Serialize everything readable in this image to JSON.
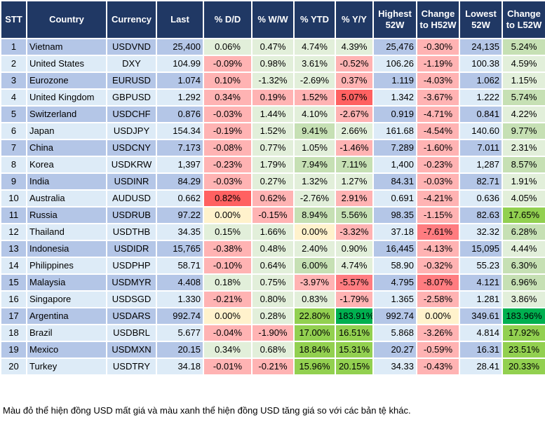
{
  "headers": [
    "STT",
    "Country",
    "Currency",
    "Last",
    "% D/D",
    "% W/W",
    "% YTD",
    "% Y/Y",
    "Highest 52W",
    "Change to H52W",
    "Lowest 52W",
    "Change to L52W"
  ],
  "colors": {
    "header": "#203864",
    "row_dark": "#b4c6e7",
    "row_light": "#ddebf7",
    "g": "#e2efda",
    "r": "#ffb3b3",
    "y": "#fff2cc",
    "m": "#c6e0b4",
    "G": "#92d050",
    "D": "#00b050",
    "R": "#ff7c80",
    "X": "#ff6161"
  },
  "rows": [
    {
      "stt": "1",
      "country": "Vietnam",
      "currency": "USDVND",
      "last": "25,400",
      "dd": [
        "0.06%",
        "g"
      ],
      "ww": [
        "0.47%",
        "g"
      ],
      "ytd": [
        "4.74%",
        "g"
      ],
      "yy": [
        "4.39%",
        "g"
      ],
      "high": "25,476",
      "ch_h": [
        "-0.30%",
        "r"
      ],
      "low": "24,135",
      "ch_l": [
        "5.24%",
        "m"
      ]
    },
    {
      "stt": "2",
      "country": "United States",
      "currency": "DXY",
      "last": "104.99",
      "dd": [
        "-0.09%",
        "r"
      ],
      "ww": [
        "0.98%",
        "g"
      ],
      "ytd": [
        "3.61%",
        "g"
      ],
      "yy": [
        "-0.52%",
        "r"
      ],
      "high": "106.26",
      "ch_h": [
        "-1.19%",
        "r"
      ],
      "low": "100.38",
      "ch_l": [
        "4.59%",
        "g"
      ]
    },
    {
      "stt": "3",
      "country": "Eurozone",
      "currency": "EURUSD",
      "last": "1.074",
      "dd": [
        "0.10%",
        "r"
      ],
      "ww": [
        "-1.32%",
        "g"
      ],
      "ytd": [
        "-2.69%",
        "g"
      ],
      "yy": [
        "0.37%",
        "r"
      ],
      "high": "1.119",
      "ch_h": [
        "-4.03%",
        "r"
      ],
      "low": "1.062",
      "ch_l": [
        "1.15%",
        "g"
      ]
    },
    {
      "stt": "4",
      "country": "United Kingdom",
      "currency": "GBPUSD",
      "last": "1.292",
      "dd": [
        "0.34%",
        "r"
      ],
      "ww": [
        "0.19%",
        "r"
      ],
      "ytd": [
        "1.52%",
        "r"
      ],
      "yy": [
        "5.07%",
        "X"
      ],
      "high": "1.342",
      "ch_h": [
        "-3.67%",
        "r"
      ],
      "low": "1.222",
      "ch_l": [
        "5.74%",
        "m"
      ]
    },
    {
      "stt": "5",
      "country": "Switzerland",
      "currency": "USDCHF",
      "last": "0.876",
      "dd": [
        "-0.03%",
        "r"
      ],
      "ww": [
        "1.44%",
        "g"
      ],
      "ytd": [
        "4.10%",
        "g"
      ],
      "yy": [
        "-2.67%",
        "r"
      ],
      "high": "0.919",
      "ch_h": [
        "-4.71%",
        "r"
      ],
      "low": "0.841",
      "ch_l": [
        "4.22%",
        "g"
      ]
    },
    {
      "stt": "6",
      "country": "Japan",
      "currency": "USDJPY",
      "last": "154.34",
      "dd": [
        "-0.19%",
        "r"
      ],
      "ww": [
        "1.52%",
        "g"
      ],
      "ytd": [
        "9.41%",
        "m"
      ],
      "yy": [
        "2.66%",
        "g"
      ],
      "high": "161.68",
      "ch_h": [
        "-4.54%",
        "r"
      ],
      "low": "140.60",
      "ch_l": [
        "9.77%",
        "m"
      ]
    },
    {
      "stt": "7",
      "country": "China",
      "currency": "USDCNY",
      "last": "7.173",
      "dd": [
        "-0.08%",
        "r"
      ],
      "ww": [
        "0.77%",
        "g"
      ],
      "ytd": [
        "1.05%",
        "g"
      ],
      "yy": [
        "-1.46%",
        "r"
      ],
      "high": "7.289",
      "ch_h": [
        "-1.60%",
        "r"
      ],
      "low": "7.011",
      "ch_l": [
        "2.31%",
        "g"
      ]
    },
    {
      "stt": "8",
      "country": "Korea",
      "currency": "USDKRW",
      "last": "1,397",
      "dd": [
        "-0.23%",
        "r"
      ],
      "ww": [
        "1.79%",
        "g"
      ],
      "ytd": [
        "7.94%",
        "m"
      ],
      "yy": [
        "7.11%",
        "m"
      ],
      "high": "1,400",
      "ch_h": [
        "-0.23%",
        "r"
      ],
      "low": "1,287",
      "ch_l": [
        "8.57%",
        "m"
      ]
    },
    {
      "stt": "9",
      "country": "India",
      "currency": "USDINR",
      "last": "84.29",
      "dd": [
        "-0.03%",
        "r"
      ],
      "ww": [
        "0.27%",
        "g"
      ],
      "ytd": [
        "1.32%",
        "g"
      ],
      "yy": [
        "1.27%",
        "g"
      ],
      "high": "84.31",
      "ch_h": [
        "-0.03%",
        "r"
      ],
      "low": "82.71",
      "ch_l": [
        "1.91%",
        "g"
      ]
    },
    {
      "stt": "10",
      "country": "Australia",
      "currency": "AUDUSD",
      "last": "0.662",
      "dd": [
        "0.82%",
        "X"
      ],
      "ww": [
        "0.62%",
        "r"
      ],
      "ytd": [
        "-2.76%",
        "g"
      ],
      "yy": [
        "2.91%",
        "r"
      ],
      "high": "0.691",
      "ch_h": [
        "-4.21%",
        "r"
      ],
      "low": "0.636",
      "ch_l": [
        "4.05%",
        "g"
      ]
    },
    {
      "stt": "11",
      "country": "Russia",
      "currency": "USDRUB",
      "last": "97.22",
      "dd": [
        "0.00%",
        "y"
      ],
      "ww": [
        "-0.15%",
        "r"
      ],
      "ytd": [
        "8.94%",
        "m"
      ],
      "yy": [
        "5.56%",
        "m"
      ],
      "high": "98.35",
      "ch_h": [
        "-1.15%",
        "r"
      ],
      "low": "82.63",
      "ch_l": [
        "17.65%",
        "G"
      ]
    },
    {
      "stt": "12",
      "country": "Thailand",
      "currency": "USDTHB",
      "last": "34.35",
      "dd": [
        "0.15%",
        "g"
      ],
      "ww": [
        "1.66%",
        "g"
      ],
      "ytd": [
        "0.00%",
        "y"
      ],
      "yy": [
        "-3.32%",
        "r"
      ],
      "high": "37.18",
      "ch_h": [
        "-7.61%",
        "R"
      ],
      "low": "32.32",
      "ch_l": [
        "6.28%",
        "m"
      ]
    },
    {
      "stt": "13",
      "country": "Indonesia",
      "currency": "USDIDR",
      "last": "15,765",
      "dd": [
        "-0.38%",
        "r"
      ],
      "ww": [
        "0.48%",
        "g"
      ],
      "ytd": [
        "2.40%",
        "g"
      ],
      "yy": [
        "0.90%",
        "g"
      ],
      "high": "16,445",
      "ch_h": [
        "-4.13%",
        "r"
      ],
      "low": "15,095",
      "ch_l": [
        "4.44%",
        "g"
      ]
    },
    {
      "stt": "14",
      "country": "Philippines",
      "currency": "USDPHP",
      "last": "58.71",
      "dd": [
        "-0.10%",
        "r"
      ],
      "ww": [
        "0.64%",
        "g"
      ],
      "ytd": [
        "6.00%",
        "m"
      ],
      "yy": [
        "4.74%",
        "g"
      ],
      "high": "58.90",
      "ch_h": [
        "-0.32%",
        "r"
      ],
      "low": "55.23",
      "ch_l": [
        "6.30%",
        "m"
      ]
    },
    {
      "stt": "15",
      "country": "Malaysia",
      "currency": "USDMYR",
      "last": "4.408",
      "dd": [
        "0.18%",
        "g"
      ],
      "ww": [
        "0.75%",
        "g"
      ],
      "ytd": [
        "-3.97%",
        "r"
      ],
      "yy": [
        "-5.57%",
        "R"
      ],
      "high": "4.795",
      "ch_h": [
        "-8.07%",
        "R"
      ],
      "low": "4.121",
      "ch_l": [
        "6.96%",
        "m"
      ]
    },
    {
      "stt": "16",
      "country": "Singapore",
      "currency": "USDSGD",
      "last": "1.330",
      "dd": [
        "-0.21%",
        "r"
      ],
      "ww": [
        "0.80%",
        "g"
      ],
      "ytd": [
        "0.83%",
        "g"
      ],
      "yy": [
        "-1.79%",
        "r"
      ],
      "high": "1.365",
      "ch_h": [
        "-2.58%",
        "r"
      ],
      "low": "1.281",
      "ch_l": [
        "3.86%",
        "g"
      ]
    },
    {
      "stt": "17",
      "country": "Argentina",
      "currency": "USDARS",
      "last": "992.74",
      "dd": [
        "0.00%",
        "y"
      ],
      "ww": [
        "0.28%",
        "g"
      ],
      "ytd": [
        "22.80%",
        "G"
      ],
      "yy": [
        "183.91%",
        "D"
      ],
      "high": "992.74",
      "ch_h": [
        "0.00%",
        "y"
      ],
      "low": "349.61",
      "ch_l": [
        "183.96%",
        "D"
      ]
    },
    {
      "stt": "18",
      "country": "Brazil",
      "currency": "USDBRL",
      "last": "5.677",
      "dd": [
        "-0.04%",
        "r"
      ],
      "ww": [
        "-1.90%",
        "r"
      ],
      "ytd": [
        "17.00%",
        "G"
      ],
      "yy": [
        "16.51%",
        "G"
      ],
      "high": "5.868",
      "ch_h": [
        "-3.26%",
        "r"
      ],
      "low": "4.814",
      "ch_l": [
        "17.92%",
        "G"
      ]
    },
    {
      "stt": "19",
      "country": "Mexico",
      "currency": "USDMXN",
      "last": "20.15",
      "dd": [
        "0.34%",
        "g"
      ],
      "ww": [
        "0.68%",
        "g"
      ],
      "ytd": [
        "18.84%",
        "G"
      ],
      "yy": [
        "15.31%",
        "G"
      ],
      "high": "20.27",
      "ch_h": [
        "-0.59%",
        "r"
      ],
      "low": "16.31",
      "ch_l": [
        "23.51%",
        "G"
      ]
    },
    {
      "stt": "20",
      "country": "Turkey",
      "currency": "USDTRY",
      "last": "34.18",
      "dd": [
        "-0.01%",
        "r"
      ],
      "ww": [
        "-0.21%",
        "r"
      ],
      "ytd": [
        "15.96%",
        "G"
      ],
      "yy": [
        "20.15%",
        "G"
      ],
      "high": "34.33",
      "ch_h": [
        "-0.43%",
        "r"
      ],
      "low": "28.41",
      "ch_l": [
        "20.33%",
        "G"
      ]
    }
  ],
  "footer": "Màu đỏ thể hiện đồng USD mất giá và màu xanh thể hiện đồng USD tăng giá so với các bản tệ khác."
}
